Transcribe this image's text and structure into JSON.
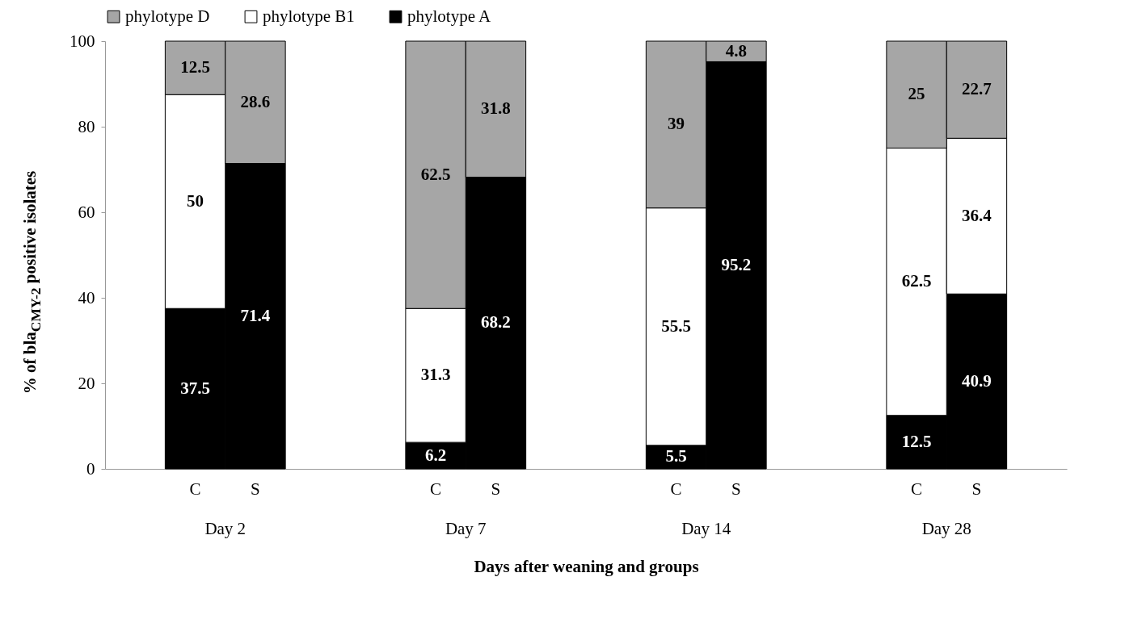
{
  "chart_data": {
    "type": "bar",
    "stacked": true,
    "data_labels": true,
    "categories": [
      "C",
      "S",
      "C",
      "S",
      "C",
      "S",
      "C",
      "S"
    ],
    "annotations": [
      "Day 2",
      "Day 7",
      "Day 14",
      "Day 28"
    ],
    "series": [
      {
        "name": "phylotype A",
        "color": "#000000",
        "values": [
          37.5,
          71.4,
          6.2,
          68.2,
          5.5,
          95.2,
          12.5,
          40.9
        ]
      },
      {
        "name": "phylotype B1",
        "color": "#ffffff",
        "values": [
          50,
          null,
          31.3,
          null,
          55.5,
          null,
          62.5,
          36.4
        ]
      },
      {
        "name": "phylotype D",
        "color": "#a6a6a6",
        "values": [
          12.5,
          28.6,
          62.5,
          31.8,
          39,
          4.8,
          25,
          22.7
        ]
      }
    ],
    "xlabel": "Days after weaning and groups",
    "ylabel": "%  of bla$_{CMY-2}$ positive isolates",
    "ylim": [
      0,
      100
    ],
    "yticks": [
      0,
      20,
      40,
      60,
      80,
      100
    ],
    "grid": false,
    "legend": "top"
  }
}
